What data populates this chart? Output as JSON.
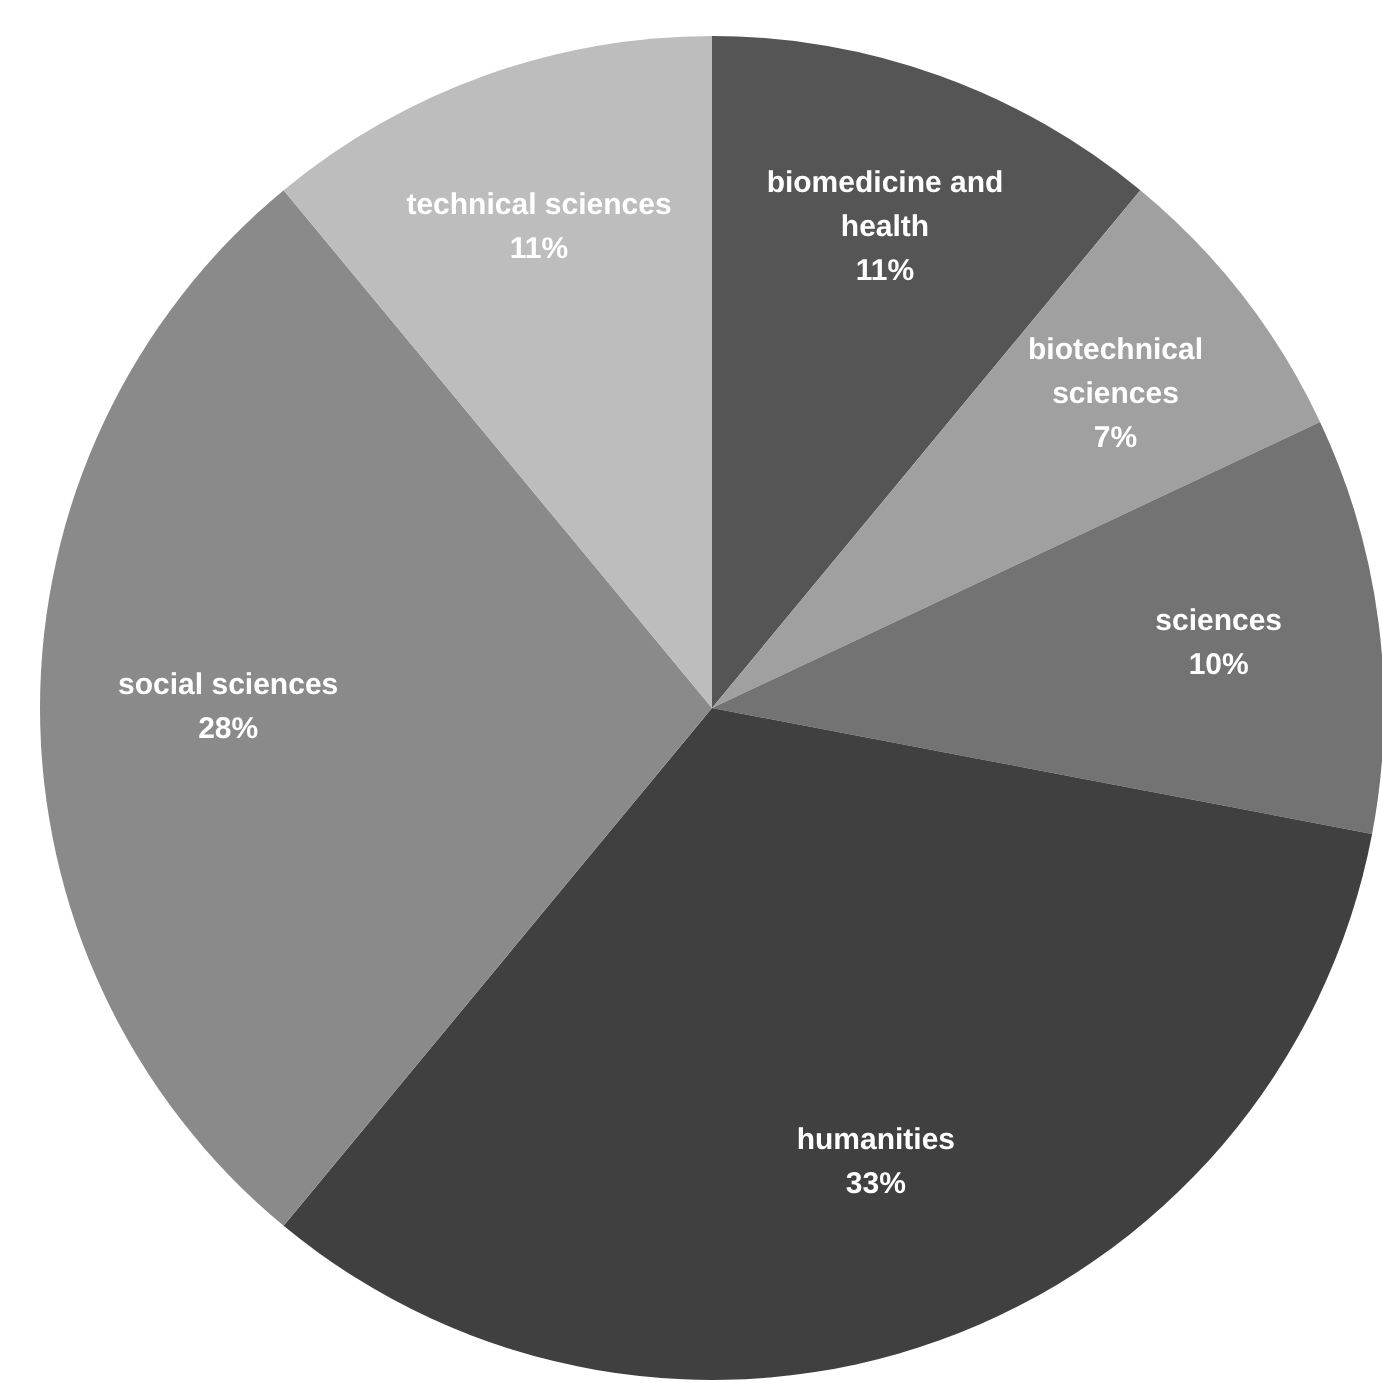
{
  "chart_data": {
    "type": "pie",
    "categories": [
      "biomedicine and health",
      "biotechnical sciences",
      "sciences",
      "humanities",
      "social sciences",
      "technical sciences"
    ],
    "values": [
      11,
      7,
      10,
      33,
      28,
      11
    ],
    "value_labels": [
      "11%",
      "7%",
      "10%",
      "33%",
      "28%",
      "11%"
    ],
    "colors": [
      "#555555",
      "#a0a0a0",
      "#737373",
      "#404040",
      "#8a8a8a",
      "#bdbdbd"
    ]
  }
}
